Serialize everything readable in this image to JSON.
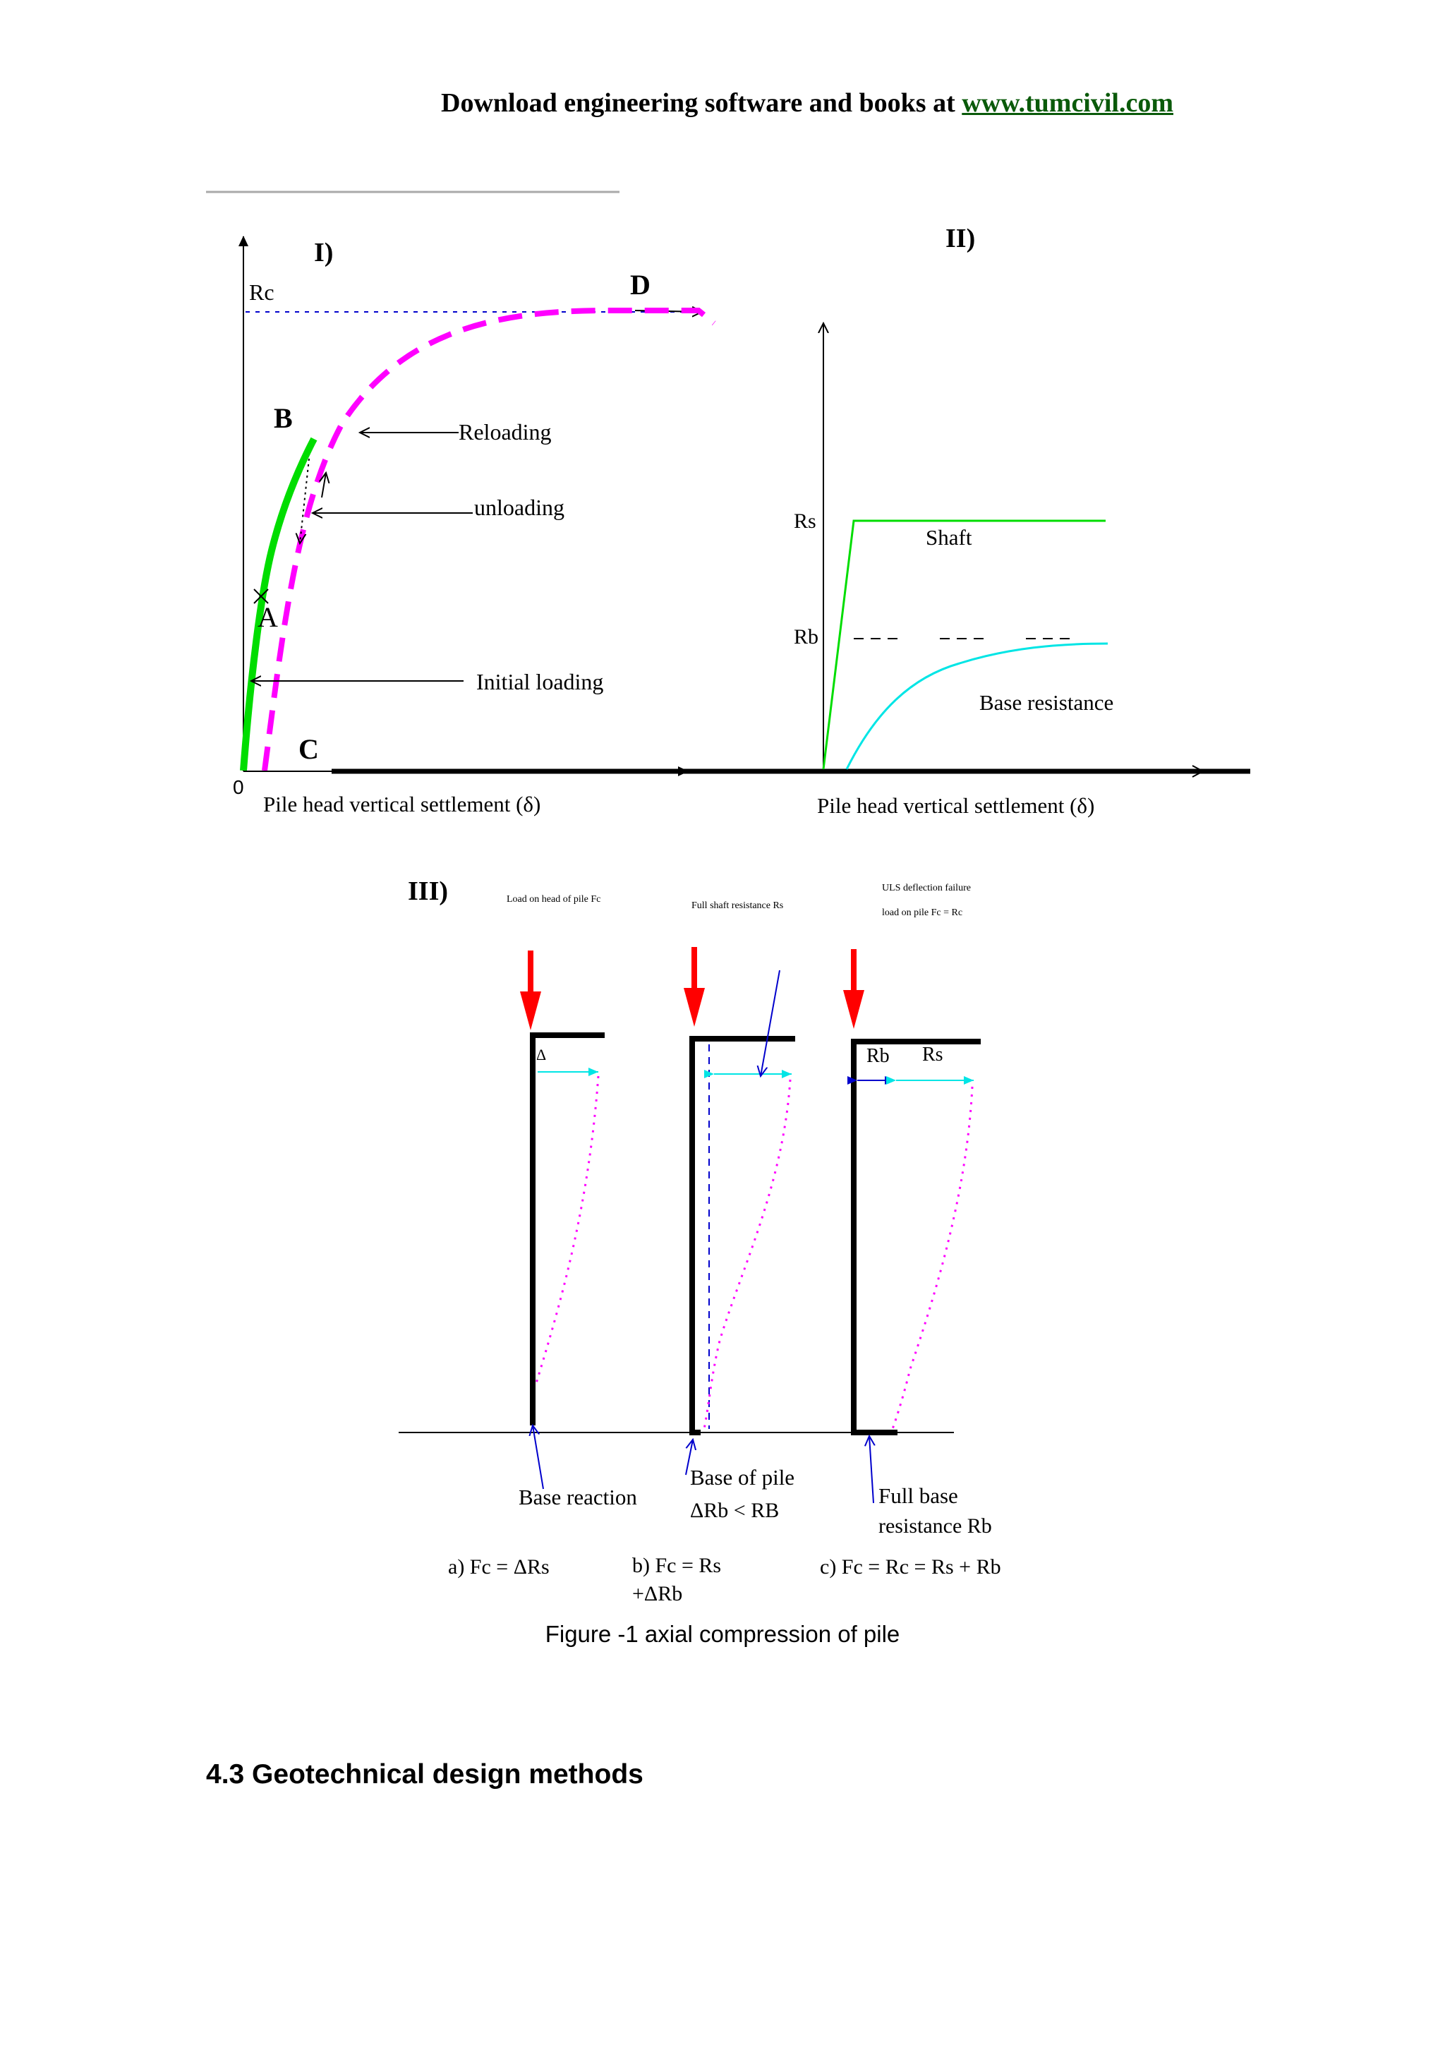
{
  "header": {
    "prefix": "Download engineering software and books at",
    "link": "www.tumcivil.com"
  },
  "panel_I": {
    "label": "I)",
    "rc": "Rc",
    "origin": "0",
    "point_a": "A",
    "point_b": "B",
    "point_c": "C",
    "point_d": "D",
    "reloading": "Reloading",
    "unloading": "unloading",
    "initial_loading": "Initial loading",
    "xlabel": "Pile head vertical settlement (δ)"
  },
  "panel_II": {
    "label": "II)",
    "rs": "Rs",
    "rb": "Rb",
    "shaft": "Shaft",
    "base_resistance": "Base resistance",
    "xlabel": "Pile head vertical settlement (δ)"
  },
  "panel_III": {
    "label": "III)",
    "note_a": "Load on head of pile Fc",
    "note_b": "Full shaft resistance Rs",
    "note_c1": "ULS deflection failure",
    "note_c2": "load on pile Fc = Rc",
    "delta_label": "Δ",
    "rb_label": "Rb",
    "rs_label": "Rs",
    "base_reaction": "Base reaction",
    "base_of_pile": "Base of pile",
    "delta_rb": "ΔRb < RB",
    "full_base": "Full base",
    "full_base_2": "resistance Rb",
    "eq_a": "a) Fc = ΔRs",
    "eq_b1": "b) Fc = Rs",
    "eq_b2": "+ΔRb",
    "eq_c": "c) Fc = Rc = Rs + Rb"
  },
  "caption": "Figure -1 axial compression of pile",
  "section_heading": "4.3 Geotechnical design methods",
  "colors": {
    "magenta": "#ff00ff",
    "green": "#00dd00",
    "cyan": "#00e5e5",
    "blue": "#0000cc",
    "red": "#ff0000"
  }
}
